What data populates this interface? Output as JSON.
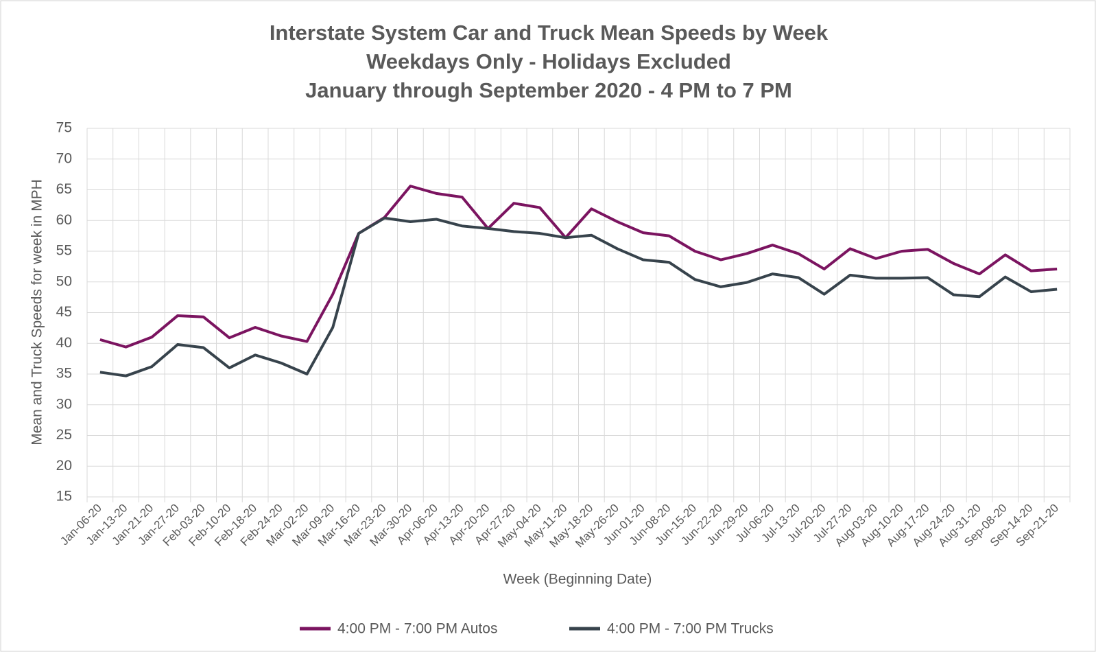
{
  "chart_data": {
    "type": "line",
    "title": "Interstate System Car and Truck Mean Speeds by Week",
    "subtitle": [
      "Weekdays Only - Holidays Excluded",
      "January through September 2020 - 4 PM to 7 PM"
    ],
    "x_label": "Week (Beginning Date)",
    "y_label": "Mean and Truck Speeds for week in MPH",
    "categories": [
      "Jan-06-20",
      "Jan-13-20",
      "Jan-21-20",
      "Jan-27-20",
      "Feb-03-20",
      "Feb-10-20",
      "Feb-18-20",
      "Feb-24-20",
      "Mar-02-20",
      "Mar-09-20",
      "Mar-16-20",
      "Mar-23-20",
      "Mar-30-20",
      "Apr-06-20",
      "Apr-13-20",
      "Apr-20-20",
      "Apr-27-20",
      "May-04-20",
      "May-11-20",
      "May-18-20",
      "May-26-20",
      "Jun-01-20",
      "Jun-08-20",
      "Jun-15-20",
      "Jun-22-20",
      "Jun-29-20",
      "Jul-06-20",
      "Jul-13-20",
      "Jul-20-20",
      "Jul-27-20",
      "Aug-03-20",
      "Aug-10-20",
      "Aug-17-20",
      "Aug-24-20",
      "Aug-31-20",
      "Sep-08-20",
      "Sep-14-20",
      "Sep-21-20"
    ],
    "series": [
      {
        "name": "4:00 PM - 7:00 PM Autos",
        "color": "#7b1460",
        "values": [
          40.6,
          39.4,
          41,
          44.5,
          44.3,
          40.9,
          42.6,
          41.2,
          40.3,
          48,
          57.9,
          60.5,
          65.6,
          64.4,
          63.8,
          58.7,
          62.8,
          62.1,
          57.2,
          61.9,
          59.8,
          58,
          57.5,
          55,
          53.6,
          54.6,
          56,
          54.6,
          52.1,
          55.4,
          53.8,
          55,
          55.3,
          53,
          51.3,
          54.4,
          51.8,
          52.1
        ]
      },
      {
        "name": "4:00 PM - 7:00 PM Trucks",
        "color": "#37434c",
        "values": [
          35.3,
          34.7,
          36.2,
          39.8,
          39.3,
          36,
          38.1,
          36.8,
          35,
          42.6,
          57.9,
          60.4,
          59.8,
          60.2,
          59.1,
          58.7,
          58.2,
          57.9,
          57.2,
          57.6,
          55.4,
          53.6,
          53.2,
          50.4,
          49.2,
          49.9,
          51.3,
          50.7,
          48,
          51.1,
          50.6,
          50.6,
          50.7,
          47.9,
          47.6,
          50.8,
          48.4,
          48.8
        ]
      }
    ],
    "ylim": [
      15,
      75
    ],
    "yticks": [
      15,
      20,
      25,
      30,
      35,
      40,
      45,
      50,
      55,
      60,
      65,
      70,
      75
    ],
    "grid": true,
    "legend": "bottom"
  }
}
